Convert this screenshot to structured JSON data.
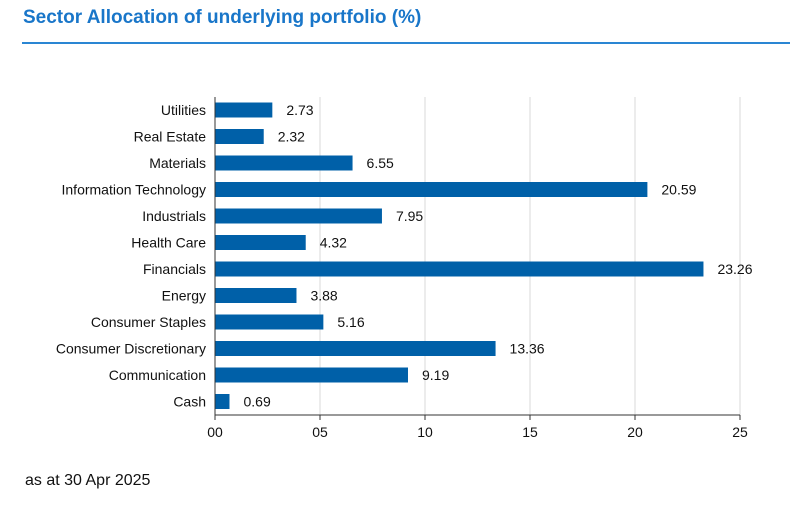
{
  "header": {
    "title": "Sector Allocation of underlying portfolio (%)"
  },
  "footer": {
    "note": "as at 30 Apr 2025"
  },
  "colors": {
    "title": "#1976c9",
    "bar": "#0060a8",
    "grid": "#e6e6e6",
    "axis": "#333333"
  },
  "chart_data": {
    "type": "bar",
    "orientation": "horizontal",
    "title": "Sector Allocation of underlying portfolio (%)",
    "xlabel": "",
    "ylabel": "",
    "xlim": [
      0,
      25
    ],
    "grid": true,
    "categories": [
      "Utilities",
      "Real Estate",
      "Materials",
      "Information Technology",
      "Industrials",
      "Health Care",
      "Financials",
      "Energy",
      "Consumer Staples",
      "Consumer Discretionary",
      "Communication",
      "Cash"
    ],
    "values": [
      2.73,
      2.32,
      6.55,
      20.59,
      7.95,
      4.32,
      23.26,
      3.88,
      5.16,
      13.36,
      9.19,
      0.69
    ],
    "value_labels": [
      "2.73",
      "2.32",
      "6.55",
      "20.59",
      "7.95",
      "4.32",
      "23.26",
      "3.88",
      "5.16",
      "13.36",
      "9.19",
      "0.69"
    ],
    "ticks": [
      0,
      5,
      10,
      15,
      20,
      25
    ],
    "tick_labels": [
      "00",
      "05",
      "10",
      "15",
      "20",
      "25"
    ]
  }
}
